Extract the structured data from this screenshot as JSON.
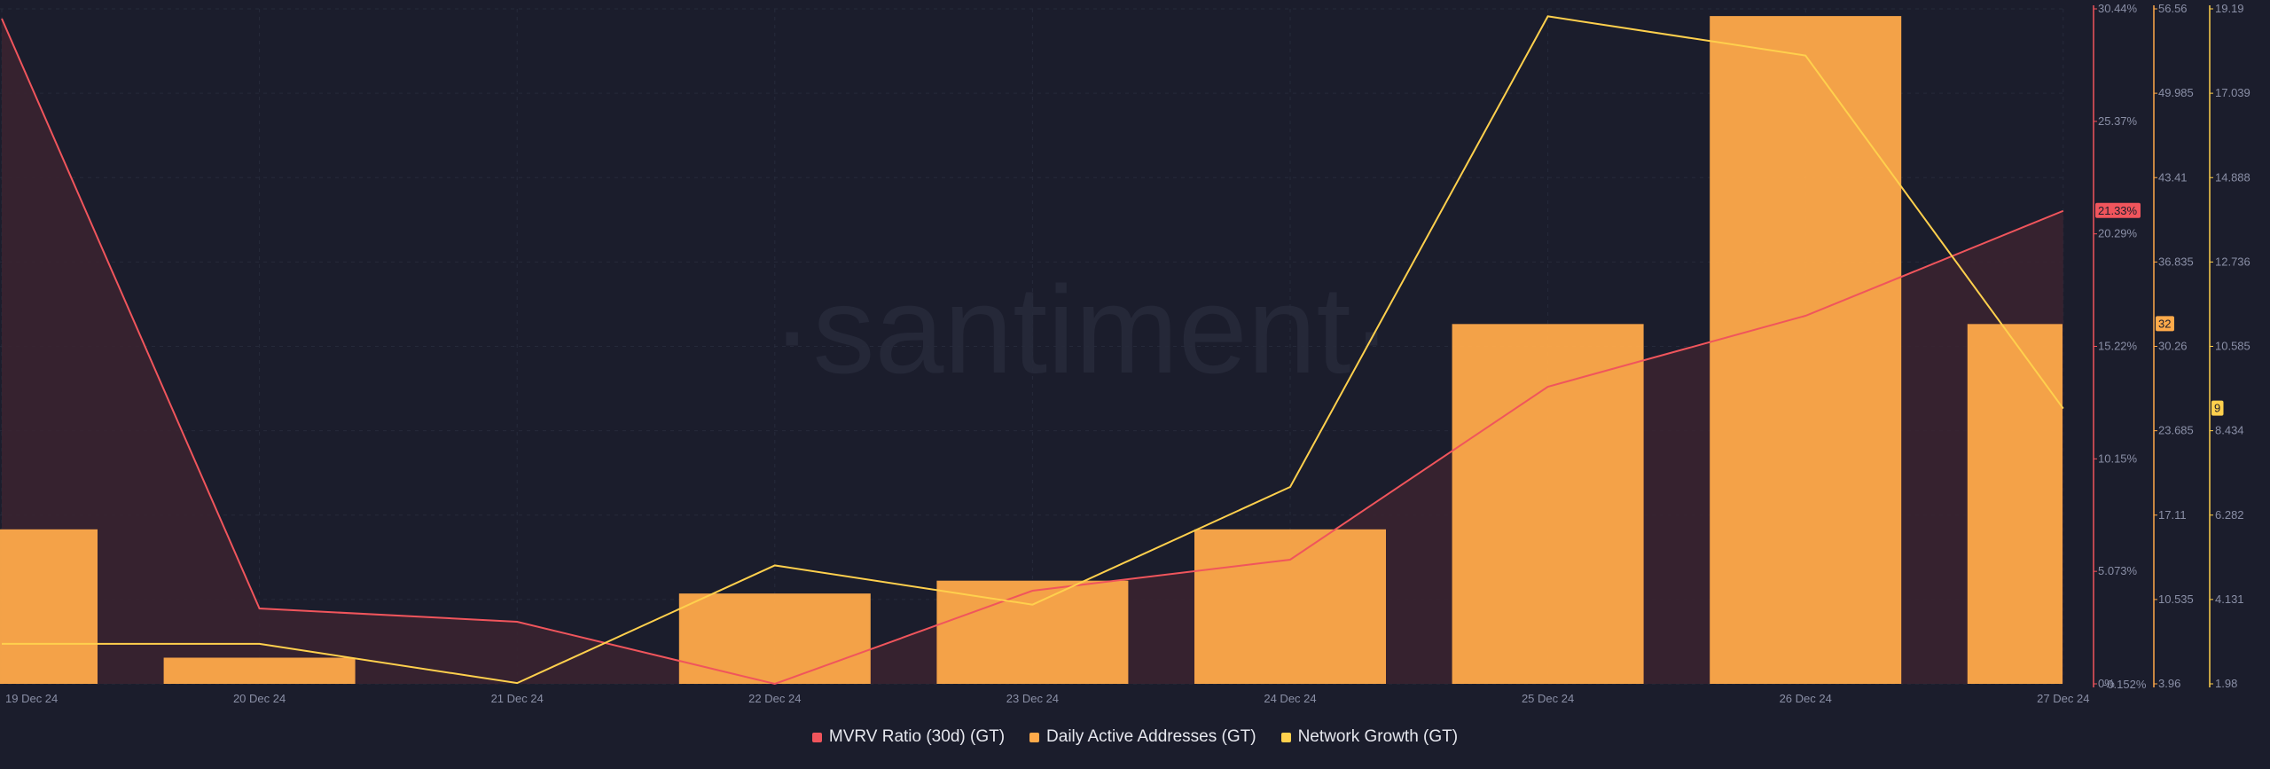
{
  "watermark": "·santiment·",
  "colors": {
    "background": "#1b1d2c",
    "mvrv": "#f0555c",
    "daa": "#ffaa4a",
    "network_growth": "#ffd04d",
    "mvrv_fill": "#3b2330",
    "grid": "#262a3a",
    "tick": "#8a8fa6"
  },
  "legend": [
    {
      "label": "MVRV Ratio (30d) (GT)",
      "color": "#f0555c"
    },
    {
      "label": "Daily Active Addresses (GT)",
      "color": "#ffaa4a"
    },
    {
      "label": "Network Growth (GT)",
      "color": "#ffd04d"
    }
  ],
  "chart_data": {
    "type": "bar",
    "categories": [
      "19 Dec 24",
      "20 Dec 24",
      "21 Dec 24",
      "22 Dec 24",
      "23 Dec 24",
      "24 Dec 24",
      "25 Dec 24",
      "26 Dec 24",
      "27 Dec 24"
    ],
    "series": [
      {
        "name": "MVRV Ratio (30d) (GT)",
        "type": "area",
        "axis": "mvrv",
        "values": [
          30.0,
          3.4,
          2.8,
          0.0,
          4.2,
          5.6,
          13.4,
          16.6,
          21.33
        ]
      },
      {
        "name": "Daily Active Addresses (GT)",
        "type": "bar",
        "axis": "daa",
        "values": [
          16,
          6,
          null,
          11,
          12,
          16,
          32,
          56,
          32
        ]
      },
      {
        "name": "Network Growth (GT)",
        "type": "line",
        "axis": "network_growth",
        "values": [
          3,
          3,
          2,
          5,
          4,
          7,
          19,
          18,
          9
        ]
      }
    ],
    "axes": {
      "mvrv": {
        "ticks": [
          "30.44%",
          "25.37%",
          "20.29%",
          "15.22%",
          "10.15%",
          "5.073%",
          "0%"
        ],
        "ylim": [
          0,
          30.44
        ],
        "extra_label": "-0.152%",
        "current": "21.33%"
      },
      "daa": {
        "ticks": [
          "56.56",
          "49.985",
          "43.41",
          "36.835",
          "30.26",
          "23.685",
          "17.11",
          "10.535",
          "3.96"
        ],
        "ylim": [
          3.96,
          56.56
        ],
        "current": "32"
      },
      "network_growth": {
        "ticks": [
          "19.19",
          "17.039",
          "14.888",
          "12.736",
          "10.585",
          "8.434",
          "6.282",
          "4.131",
          "1.98"
        ],
        "ylim": [
          1.98,
          19.19
        ],
        "current": "9"
      }
    },
    "grid": true
  }
}
